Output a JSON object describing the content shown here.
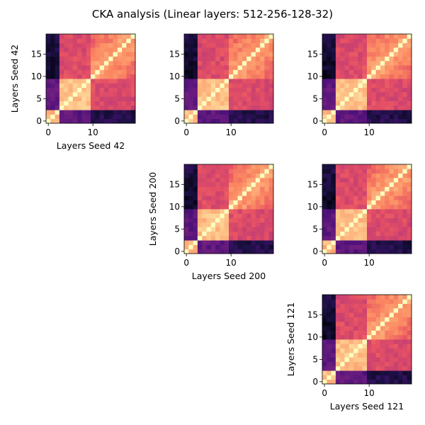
{
  "chart_data": {
    "type": "heatmap",
    "title": "CKA analysis (Linear layers: 512-256-128-32)",
    "colormap": "magma",
    "value_range": [
      0,
      1
    ],
    "n_layers": 20,
    "seeds": [
      "42",
      "200",
      "121"
    ],
    "x_ticks": [
      0,
      10
    ],
    "y_ticks": [
      0,
      5,
      10,
      15
    ],
    "grid": false,
    "panels": [
      {
        "row": 0,
        "col": 0,
        "row_seed": "42",
        "col_seed": "42",
        "xlabel": "Layers Seed 42",
        "ylabel": "Layers Seed 42"
      },
      {
        "row": 0,
        "col": 1,
        "row_seed": "42",
        "col_seed": "200",
        "xlabel": "",
        "ylabel": ""
      },
      {
        "row": 0,
        "col": 2,
        "row_seed": "42",
        "col_seed": "121",
        "xlabel": "",
        "ylabel": ""
      },
      {
        "row": 1,
        "col": 1,
        "row_seed": "200",
        "col_seed": "200",
        "xlabel": "Layers Seed 200",
        "ylabel": "Layers Seed 200"
      },
      {
        "row": 1,
        "col": 2,
        "row_seed": "200",
        "col_seed": "121",
        "xlabel": "",
        "ylabel": ""
      },
      {
        "row": 2,
        "col": 2,
        "row_seed": "121",
        "col_seed": "121",
        "xlabel": "Layers Seed 121",
        "ylabel": "Layers Seed 121"
      }
    ]
  }
}
